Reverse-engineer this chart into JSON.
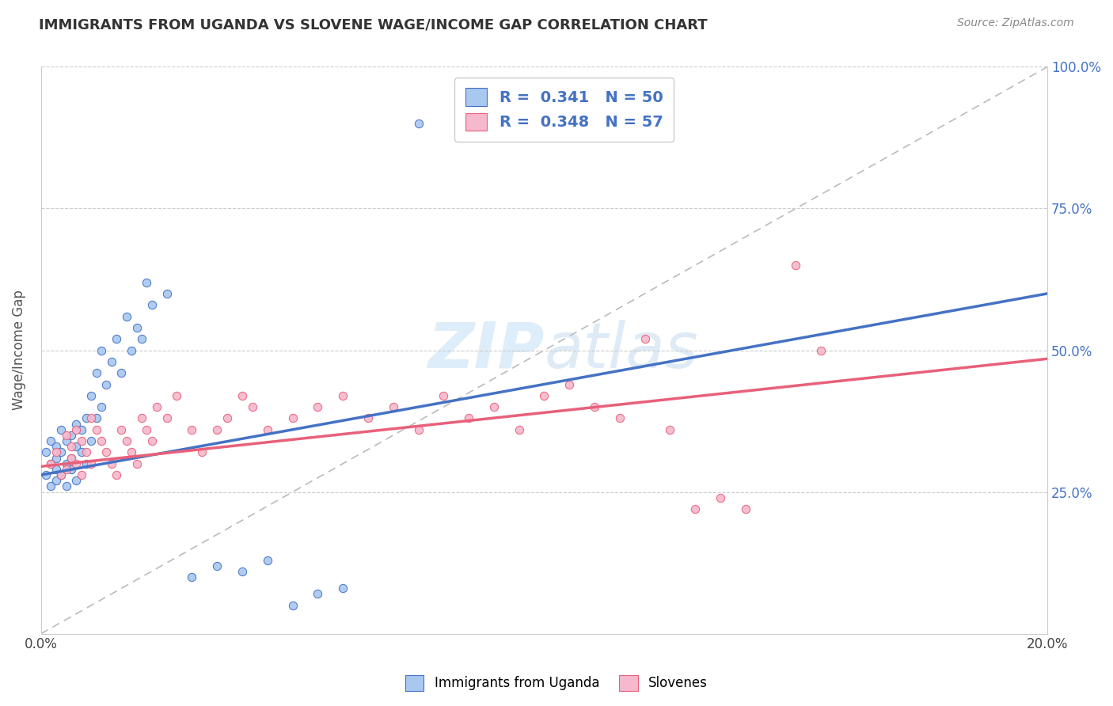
{
  "title": "IMMIGRANTS FROM UGANDA VS SLOVENE WAGE/INCOME GAP CORRELATION CHART",
  "source": "Source: ZipAtlas.com",
  "ylabel": "Wage/Income Gap",
  "blue_color": "#A8C8F0",
  "pink_color": "#F5B8CC",
  "blue_line_color": "#4472C4",
  "pink_line_color": "#E8607A",
  "watermark_color": "#D8EAF8",
  "grid_color": "#CCCCCC",
  "xlim": [
    0.0,
    0.2
  ],
  "ylim": [
    0.0,
    1.0
  ],
  "blue_trend": [
    0.0,
    0.2,
    0.28,
    0.6
  ],
  "pink_trend": [
    0.0,
    0.2,
    0.295,
    0.485
  ],
  "blue_x": [
    0.001,
    0.001,
    0.002,
    0.002,
    0.002,
    0.003,
    0.003,
    0.003,
    0.003,
    0.004,
    0.004,
    0.004,
    0.005,
    0.005,
    0.005,
    0.006,
    0.006,
    0.006,
    0.007,
    0.007,
    0.007,
    0.008,
    0.008,
    0.009,
    0.009,
    0.01,
    0.01,
    0.011,
    0.011,
    0.012,
    0.012,
    0.013,
    0.014,
    0.015,
    0.016,
    0.017,
    0.018,
    0.019,
    0.02,
    0.021,
    0.022,
    0.025,
    0.03,
    0.035,
    0.04,
    0.045,
    0.05,
    0.055,
    0.06,
    0.075
  ],
  "blue_y": [
    0.28,
    0.32,
    0.3,
    0.34,
    0.26,
    0.29,
    0.33,
    0.31,
    0.27,
    0.32,
    0.28,
    0.36,
    0.3,
    0.34,
    0.26,
    0.31,
    0.35,
    0.29,
    0.33,
    0.37,
    0.27,
    0.32,
    0.36,
    0.3,
    0.38,
    0.34,
    0.42,
    0.38,
    0.46,
    0.4,
    0.5,
    0.44,
    0.48,
    0.52,
    0.46,
    0.56,
    0.5,
    0.54,
    0.52,
    0.62,
    0.58,
    0.6,
    0.1,
    0.12,
    0.11,
    0.13,
    0.05,
    0.07,
    0.08,
    0.9
  ],
  "pink_x": [
    0.002,
    0.003,
    0.004,
    0.005,
    0.005,
    0.006,
    0.006,
    0.007,
    0.007,
    0.008,
    0.008,
    0.009,
    0.01,
    0.01,
    0.011,
    0.012,
    0.013,
    0.014,
    0.015,
    0.016,
    0.017,
    0.018,
    0.019,
    0.02,
    0.021,
    0.022,
    0.023,
    0.025,
    0.027,
    0.03,
    0.032,
    0.035,
    0.037,
    0.04,
    0.042,
    0.045,
    0.05,
    0.055,
    0.06,
    0.065,
    0.07,
    0.075,
    0.08,
    0.085,
    0.09,
    0.095,
    0.1,
    0.105,
    0.11,
    0.115,
    0.12,
    0.125,
    0.13,
    0.135,
    0.14,
    0.15,
    0.155
  ],
  "pink_y": [
    0.3,
    0.32,
    0.28,
    0.35,
    0.29,
    0.33,
    0.31,
    0.36,
    0.3,
    0.34,
    0.28,
    0.32,
    0.38,
    0.3,
    0.36,
    0.34,
    0.32,
    0.3,
    0.28,
    0.36,
    0.34,
    0.32,
    0.3,
    0.38,
    0.36,
    0.34,
    0.4,
    0.38,
    0.42,
    0.36,
    0.32,
    0.36,
    0.38,
    0.42,
    0.4,
    0.36,
    0.38,
    0.4,
    0.42,
    0.38,
    0.4,
    0.36,
    0.42,
    0.38,
    0.4,
    0.36,
    0.42,
    0.44,
    0.4,
    0.38,
    0.52,
    0.36,
    0.22,
    0.24,
    0.22,
    0.65,
    0.5
  ]
}
